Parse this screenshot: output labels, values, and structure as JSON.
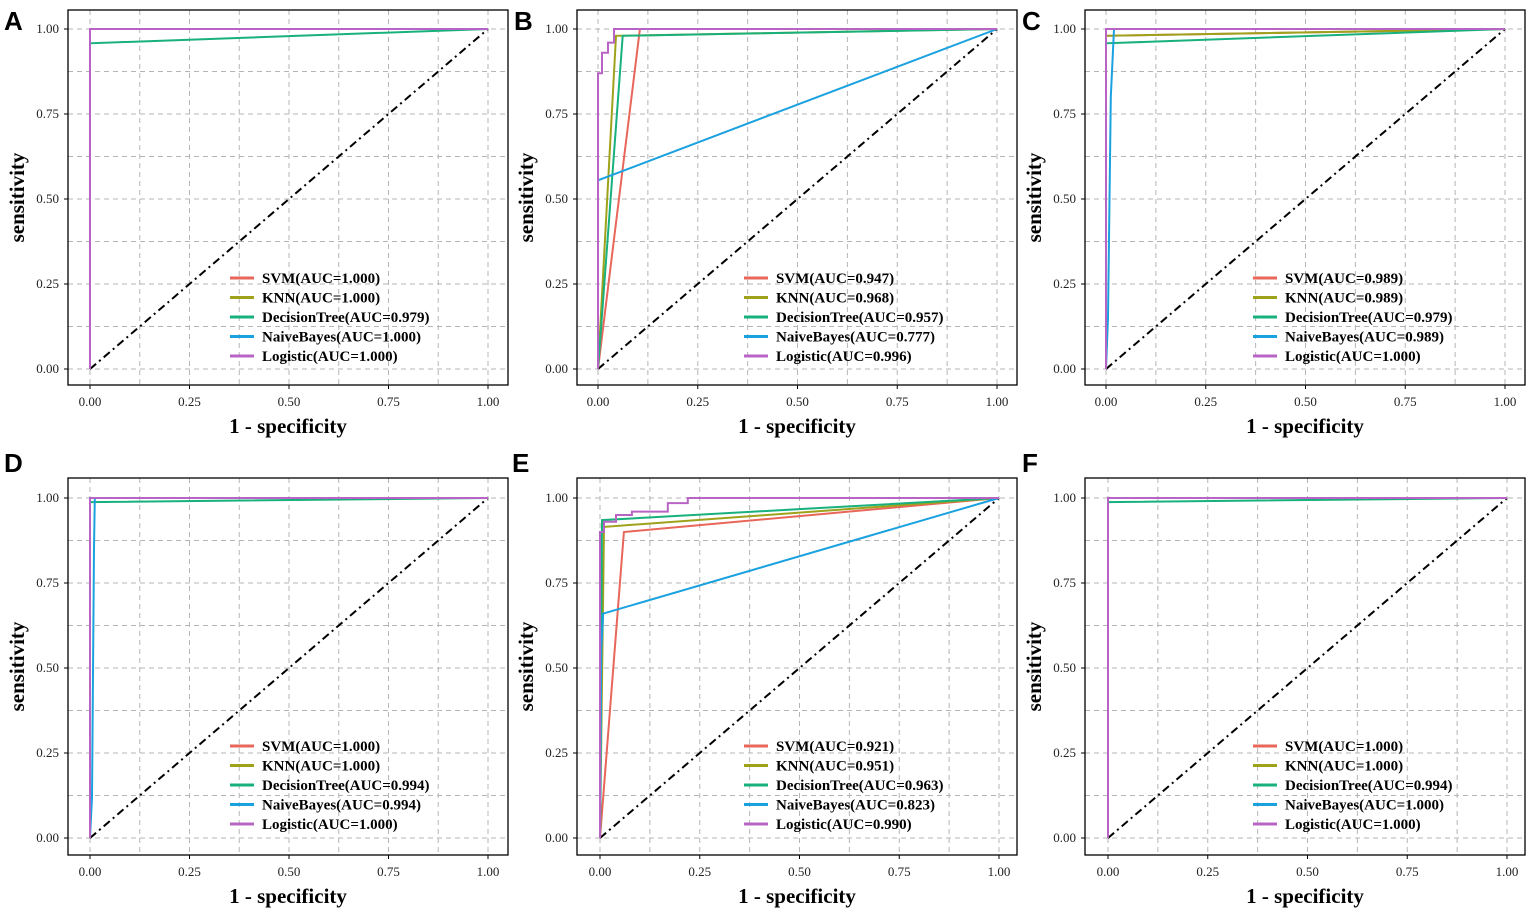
{
  "figure": {
    "colors": {
      "SVM": "#e8665a",
      "KNN": "#9ea21b",
      "DecisionTree": "#18b07c",
      "NaiveBayes": "#1aa1e0",
      "Logistic": "#b764c4",
      "diagonal": "#000000",
      "grid": "#b5b5b5"
    }
  },
  "chart_data": [
    {
      "panel": "A",
      "type": "line",
      "xlabel": "1 - specificity",
      "ylabel": "sensitivity",
      "xlim": [
        0,
        1
      ],
      "ylim": [
        0,
        1
      ],
      "xticks": [
        "0.00",
        "0.25",
        "0.50",
        "0.75",
        "1.00"
      ],
      "yticks": [
        "0.00",
        "0.25",
        "0.50",
        "0.75",
        "1.00"
      ],
      "grid": true,
      "legend_position": "bottom-right",
      "series": [
        {
          "name": "SVM",
          "label": "SVM(AUC=1.000)",
          "x": [
            0,
            0,
            1
          ],
          "y": [
            0,
            1,
            1
          ]
        },
        {
          "name": "KNN",
          "label": "KNN(AUC=1.000)",
          "x": [
            0,
            0,
            1
          ],
          "y": [
            0,
            1,
            1
          ]
        },
        {
          "name": "DecisionTree",
          "label": "DecisionTree(AUC=0.979)",
          "x": [
            0,
            0,
            1
          ],
          "y": [
            0,
            0.958,
            1
          ]
        },
        {
          "name": "NaiveBayes",
          "label": "NaiveBayes(AUC=1.000)",
          "x": [
            0,
            0,
            1
          ],
          "y": [
            0,
            1,
            1
          ]
        },
        {
          "name": "Logistic",
          "label": "Logistic(AUC=1.000)",
          "x": [
            0,
            0,
            1
          ],
          "y": [
            0,
            1,
            1
          ]
        }
      ]
    },
    {
      "panel": "B",
      "type": "line",
      "xlabel": "1 - specificity",
      "ylabel": "sensitivity",
      "xlim": [
        0,
        1
      ],
      "ylim": [
        0,
        1
      ],
      "xticks": [
        "0.00",
        "0.25",
        "0.50",
        "0.75",
        "1.00"
      ],
      "yticks": [
        "0.00",
        "0.25",
        "0.50",
        "0.75",
        "1.00"
      ],
      "grid": true,
      "legend_position": "bottom-right",
      "series": [
        {
          "name": "SVM",
          "label": "SVM(AUC=0.947)",
          "x": [
            0,
            0.105,
            1
          ],
          "y": [
            0,
            1,
            1
          ]
        },
        {
          "name": "KNN",
          "label": "KNN(AUC=0.968)",
          "x": [
            0,
            0.045,
            1
          ],
          "y": [
            0,
            0.98,
            1
          ]
        },
        {
          "name": "DecisionTree",
          "label": "DecisionTree(AUC=0.957)",
          "x": [
            0,
            0.062,
            1
          ],
          "y": [
            0,
            0.98,
            1
          ]
        },
        {
          "name": "NaiveBayes",
          "label": "NaiveBayes(AUC=0.777)",
          "x": [
            0,
            0,
            1
          ],
          "y": [
            0,
            0.555,
            1
          ]
        },
        {
          "name": "Logistic",
          "label": "Logistic(AUC=0.996)",
          "x": [
            0,
            0,
            0.01,
            0.01,
            0.025,
            0.025,
            0.04,
            0.04,
            1
          ],
          "y": [
            0,
            0.87,
            0.87,
            0.93,
            0.93,
            0.96,
            0.96,
            1,
            1
          ]
        }
      ]
    },
    {
      "panel": "C",
      "type": "line",
      "xlabel": "1 - specificity",
      "ylabel": "sensitivity",
      "xlim": [
        0,
        1
      ],
      "ylim": [
        0,
        1
      ],
      "xticks": [
        "0.00",
        "0.25",
        "0.50",
        "0.75",
        "1.00"
      ],
      "yticks": [
        "0.00",
        "0.25",
        "0.50",
        "0.75",
        "1.00"
      ],
      "grid": true,
      "legend_position": "bottom-right",
      "series": [
        {
          "name": "SVM",
          "label": "SVM(AUC=0.989)",
          "x": [
            0,
            0,
            1
          ],
          "y": [
            0,
            0.98,
            1
          ]
        },
        {
          "name": "KNN",
          "label": "KNN(AUC=0.989)",
          "x": [
            0,
            0,
            1
          ],
          "y": [
            0,
            0.98,
            1
          ]
        },
        {
          "name": "DecisionTree",
          "label": "DecisionTree(AUC=0.979)",
          "x": [
            0,
            0,
            1
          ],
          "y": [
            0,
            0.958,
            1
          ]
        },
        {
          "name": "NaiveBayes",
          "label": "NaiveBayes(AUC=0.989)",
          "x": [
            0,
            0.005,
            0.012,
            0.02,
            1
          ],
          "y": [
            0,
            0.15,
            0.8,
            1,
            1
          ]
        },
        {
          "name": "Logistic",
          "label": "Logistic(AUC=1.000)",
          "x": [
            0,
            0,
            1
          ],
          "y": [
            0,
            1,
            1
          ]
        }
      ]
    },
    {
      "panel": "D",
      "type": "line",
      "xlabel": "1 - specificity",
      "ylabel": "sensitivity",
      "xlim": [
        0,
        1
      ],
      "ylim": [
        0,
        1
      ],
      "xticks": [
        "0.00",
        "0.25",
        "0.50",
        "0.75",
        "1.00"
      ],
      "yticks": [
        "0.00",
        "0.25",
        "0.50",
        "0.75",
        "1.00"
      ],
      "grid": true,
      "legend_position": "bottom-right",
      "series": [
        {
          "name": "SVM",
          "label": "SVM(AUC=1.000)",
          "x": [
            0,
            0,
            1
          ],
          "y": [
            0,
            1,
            1
          ]
        },
        {
          "name": "KNN",
          "label": "KNN(AUC=1.000)",
          "x": [
            0,
            0,
            1
          ],
          "y": [
            0,
            1,
            1
          ]
        },
        {
          "name": "DecisionTree",
          "label": "DecisionTree(AUC=0.994)",
          "x": [
            0,
            0,
            1
          ],
          "y": [
            0,
            0.988,
            1
          ]
        },
        {
          "name": "NaiveBayes",
          "label": "NaiveBayes(AUC=0.994)",
          "x": [
            0,
            0.005,
            0.01,
            0.012,
            1
          ],
          "y": [
            0,
            0.12,
            0.85,
            1,
            1
          ]
        },
        {
          "name": "Logistic",
          "label": "Logistic(AUC=1.000)",
          "x": [
            0,
            0,
            1
          ],
          "y": [
            0,
            1,
            1
          ]
        }
      ]
    },
    {
      "panel": "E",
      "type": "line",
      "xlabel": "1 - specificity",
      "ylabel": "sensitivity",
      "xlim": [
        0,
        1
      ],
      "ylim": [
        0,
        1
      ],
      "xticks": [
        "0.00",
        "0.25",
        "0.50",
        "0.75",
        "1.00"
      ],
      "yticks": [
        "0.00",
        "0.25",
        "0.50",
        "0.75",
        "1.00"
      ],
      "grid": true,
      "legend_position": "bottom-right",
      "series": [
        {
          "name": "SVM",
          "label": "SVM(AUC=0.921)",
          "x": [
            0,
            0.06,
            1
          ],
          "y": [
            0,
            0.9,
            1
          ]
        },
        {
          "name": "KNN",
          "label": "KNN(AUC=0.951)",
          "x": [
            0,
            0.01,
            1
          ],
          "y": [
            0,
            0.915,
            1
          ]
        },
        {
          "name": "DecisionTree",
          "label": "DecisionTree(AUC=0.963)",
          "x": [
            0,
            0.005,
            1
          ],
          "y": [
            0,
            0.935,
            1
          ]
        },
        {
          "name": "NaiveBayes",
          "label": "NaiveBayes(AUC=0.823)",
          "x": [
            0,
            0.003,
            0.008,
            1
          ],
          "y": [
            0,
            0.55,
            0.66,
            1
          ]
        },
        {
          "name": "Logistic",
          "label": "Logistic(AUC=0.990)",
          "x": [
            0,
            0,
            0.01,
            0.01,
            0.04,
            0.04,
            0.08,
            0.08,
            0.17,
            0.17,
            0.22,
            0.22,
            1
          ],
          "y": [
            0,
            0.9,
            0.9,
            0.93,
            0.93,
            0.95,
            0.95,
            0.96,
            0.96,
            0.985,
            0.985,
            1,
            1
          ]
        }
      ]
    },
    {
      "panel": "F",
      "type": "line",
      "xlabel": "1 - specificity",
      "ylabel": "sensitivity",
      "xlim": [
        0,
        1
      ],
      "ylim": [
        0,
        1
      ],
      "xticks": [
        "0.00",
        "0.25",
        "0.50",
        "0.75",
        "1.00"
      ],
      "yticks": [
        "0.00",
        "0.25",
        "0.50",
        "0.75",
        "1.00"
      ],
      "grid": true,
      "legend_position": "bottom-right",
      "series": [
        {
          "name": "SVM",
          "label": "SVM(AUC=1.000)",
          "x": [
            0,
            0,
            1
          ],
          "y": [
            0,
            1,
            1
          ]
        },
        {
          "name": "KNN",
          "label": "KNN(AUC=1.000)",
          "x": [
            0,
            0,
            1
          ],
          "y": [
            0,
            1,
            1
          ]
        },
        {
          "name": "DecisionTree",
          "label": "DecisionTree(AUC=0.994)",
          "x": [
            0,
            0,
            1
          ],
          "y": [
            0,
            0.988,
            1
          ]
        },
        {
          "name": "NaiveBayes",
          "label": "NaiveBayes(AUC=1.000)",
          "x": [
            0,
            0,
            1
          ],
          "y": [
            0,
            1,
            1
          ]
        },
        {
          "name": "Logistic",
          "label": "Logistic(AUC=1.000)",
          "x": [
            0,
            0,
            1
          ],
          "y": [
            0,
            1,
            1
          ]
        }
      ]
    }
  ]
}
